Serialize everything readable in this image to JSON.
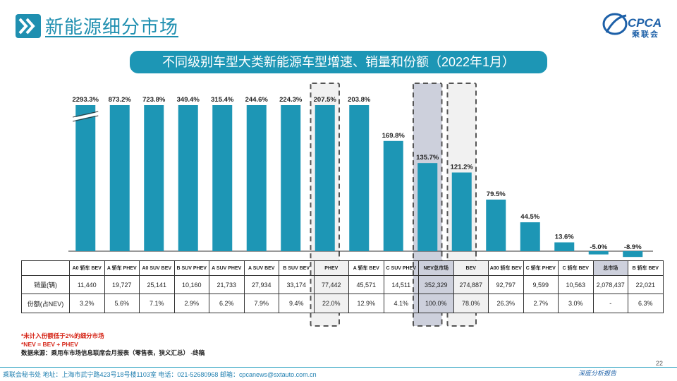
{
  "page": {
    "title": "新能源细分市场",
    "logo_text": "CPCA",
    "logo_subtext": "乘联会",
    "page_number": "22",
    "footer": "乘联会秘书处   地址：上海市武宁路423号18号楼1103室   电话：021-52680968   邮箱：cpcanews@sxtauto.com.cn",
    "signature": "深度分析报告",
    "colors": {
      "accent": "#1d96b5",
      "bar": "#1d96b5",
      "highlight_dark": "#cdd0dc",
      "highlight_light": "#f1f1f1",
      "note_red": "#d6281a"
    }
  },
  "chart_data": {
    "type": "bar",
    "title": "不同级别车型大类新能源车型增速、销量和份额（2022年1月）",
    "categories": [
      "A0 轿车 BEV",
      "A 轿车 PHEV",
      "A0 SUV BEV",
      "B SUV PHEV",
      "A SUV PHEV",
      "A SUV BEV",
      "B SUV BEV",
      "PHEV",
      "A 轿车 BEV",
      "C SUV PHEV",
      "NEV总市场",
      "BEV",
      "A00 轿车 BEV",
      "C 轿车 PHEV",
      "C 轿车 BEV",
      "总市场",
      "B 轿车 BEV"
    ],
    "series": [
      {
        "values": [
          2293.3,
          873.2,
          723.8,
          349.4,
          315.4,
          244.6,
          224.3,
          207.5,
          203.8,
          169.8,
          135.7,
          121.2,
          79.5,
          44.5,
          13.6,
          -5.0,
          -8.9
        ]
      }
    ],
    "data_labels": [
      "2293.3%",
      "873.2%",
      "723.8%",
      "349.4%",
      "315.4%",
      "244.6%",
      "224.3%",
      "207.5%",
      "203.8%",
      "169.8%",
      "135.7%",
      "121.2%",
      "79.5%",
      "44.5%",
      "13.6%",
      "-5.0%",
      "-8.9%"
    ],
    "axis_break": true,
    "highlighted": {
      "PHEV": "light",
      "NEV总市场": "dark",
      "BEV": "light",
      "总市场": "dark"
    },
    "table": {
      "row_labels": [
        "销量(辆)",
        "份额(占NEV)"
      ],
      "sales": [
        "11,440",
        "19,727",
        "25,141",
        "10,160",
        "21,733",
        "27,934",
        "33,174",
        "77,442",
        "45,571",
        "14,511",
        "352,329",
        "274,887",
        "92,797",
        "9,599",
        "10,563",
        "2,078,437",
        "22,021"
      ],
      "share": [
        "3.2%",
        "5.6%",
        "7.1%",
        "2.9%",
        "6.2%",
        "7.9%",
        "9.4%",
        "22.0%",
        "12.9%",
        "4.1%",
        "100.0%",
        "78.0%",
        "26.3%",
        "2.7%",
        "3.0%",
        "-",
        "6.3%"
      ]
    }
  },
  "notes": [
    "*未计入份额低于2%的细分市场",
    "*NEV = BEV + PHEV",
    "数据来源：乘用车市场信息联席会月报表（零售表，狭义汇总） -终稿"
  ]
}
